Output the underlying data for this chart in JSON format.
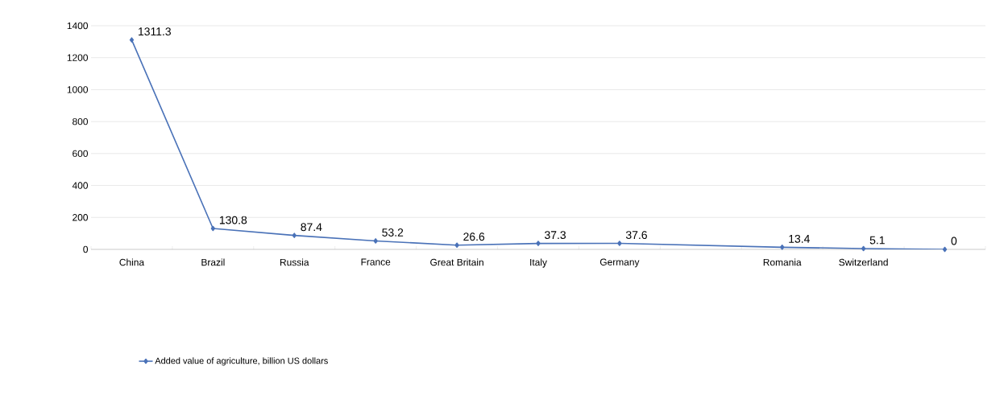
{
  "chart_data": {
    "type": "line",
    "categories": [
      "China",
      "Brazil",
      "Russia",
      "France",
      "Great Britain",
      "Italy",
      "Germany",
      null,
      "Romania",
      "Switzerland",
      null
    ],
    "series": [
      {
        "name": "Added value of agriculture, billion US dollars",
        "color": "#4a72b8",
        "values": [
          1311.3,
          130.8,
          87.4,
          53.2,
          26.6,
          37.3,
          37.6,
          null,
          13.4,
          5.1,
          0
        ]
      }
    ],
    "data_labels": true,
    "ylim": [
      0,
      1400
    ],
    "yticks": [
      0,
      200,
      400,
      600,
      800,
      1000,
      1200,
      1400
    ],
    "grid": "y",
    "legend": "bottom",
    "marker": "diamond",
    "line_style": "solid"
  }
}
